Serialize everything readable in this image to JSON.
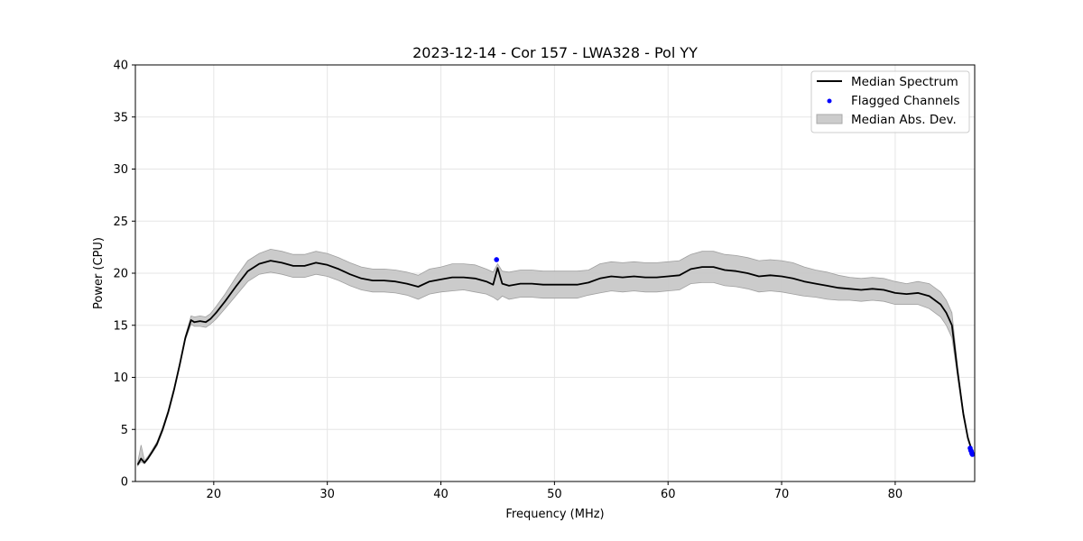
{
  "chart_data": {
    "type": "line",
    "title": "2023-12-14 - Cor 157 - LWA328 - Pol YY",
    "xlabel": "Frequency (MHz)",
    "ylabel": "Power (CPU)",
    "xlim": [
      13.1,
      87.0
    ],
    "ylim": [
      0,
      40
    ],
    "xticks": [
      20,
      30,
      40,
      50,
      60,
      70,
      80
    ],
    "yticks": [
      0,
      5,
      10,
      15,
      20,
      25,
      30,
      35,
      40
    ],
    "grid": true,
    "legend_position": "top-right",
    "legend": [
      {
        "label": "Median Spectrum",
        "kind": "line",
        "color": "#000000"
      },
      {
        "label": "Flagged Channels",
        "kind": "marker",
        "color": "#0000ff"
      },
      {
        "label": "Median Abs. Dev.",
        "kind": "band",
        "color": "#cccccc"
      }
    ],
    "series": [
      {
        "name": "Median Spectrum",
        "color": "#000000",
        "x": [
          13.3,
          13.6,
          13.9,
          14.2,
          14.5,
          15.0,
          15.5,
          16.0,
          16.5,
          17.0,
          17.5,
          18.0,
          18.3,
          18.8,
          19.3,
          19.7,
          20.2,
          21.0,
          22.0,
          23.0,
          24.0,
          25.0,
          26.0,
          27.0,
          28.0,
          29.0,
          30.0,
          31.0,
          32.0,
          33.0,
          34.0,
          35.0,
          36.0,
          37.0,
          38.0,
          39.0,
          40.0,
          41.0,
          42.0,
          43.0,
          44.0,
          44.6,
          45.0,
          45.4,
          46.0,
          47.0,
          48.0,
          49.0,
          50.0,
          51.0,
          52.0,
          53.0,
          54.0,
          55.0,
          56.0,
          57.0,
          58.0,
          59.0,
          60.0,
          61.0,
          62.0,
          63.0,
          64.0,
          65.0,
          66.0,
          67.0,
          68.0,
          69.0,
          70.0,
          71.0,
          72.0,
          73.0,
          74.0,
          75.0,
          76.0,
          77.0,
          78.0,
          79.0,
          80.0,
          81.0,
          82.0,
          83.0,
          84.0,
          84.5,
          85.0,
          85.5,
          86.0,
          86.4,
          86.8
        ],
        "y": [
          1.6,
          2.2,
          1.8,
          2.2,
          2.7,
          3.6,
          5.0,
          6.7,
          8.8,
          11.2,
          13.8,
          15.5,
          15.3,
          15.4,
          15.3,
          15.6,
          16.2,
          17.3,
          18.8,
          20.2,
          20.9,
          21.2,
          21.0,
          20.7,
          20.7,
          21.0,
          20.8,
          20.4,
          19.9,
          19.5,
          19.3,
          19.3,
          19.2,
          19.0,
          18.7,
          19.2,
          19.4,
          19.6,
          19.6,
          19.5,
          19.2,
          18.9,
          20.5,
          19.0,
          18.8,
          19.0,
          19.0,
          18.9,
          18.9,
          18.9,
          18.9,
          19.1,
          19.5,
          19.7,
          19.6,
          19.7,
          19.6,
          19.6,
          19.7,
          19.8,
          20.4,
          20.6,
          20.6,
          20.3,
          20.2,
          20.0,
          19.7,
          19.8,
          19.7,
          19.5,
          19.2,
          19.0,
          18.8,
          18.6,
          18.5,
          18.4,
          18.5,
          18.4,
          18.1,
          18.0,
          18.1,
          17.8,
          17.0,
          16.2,
          15.0,
          10.5,
          6.5,
          4.2,
          2.8
        ]
      }
    ],
    "band": {
      "name": "Median Abs. Dev.",
      "x": [
        13.3,
        13.6,
        13.9,
        14.2,
        14.5,
        15.0,
        15.5,
        16.0,
        16.5,
        17.0,
        17.5,
        18.0,
        18.3,
        18.8,
        19.3,
        19.7,
        20.2,
        21.0,
        22.0,
        23.0,
        24.0,
        25.0,
        26.0,
        27.0,
        28.0,
        29.0,
        30.0,
        31.0,
        32.0,
        33.0,
        34.0,
        35.0,
        36.0,
        37.0,
        38.0,
        39.0,
        40.0,
        41.0,
        42.0,
        43.0,
        44.0,
        44.6,
        45.0,
        45.4,
        46.0,
        47.0,
        48.0,
        49.0,
        50.0,
        51.0,
        52.0,
        53.0,
        54.0,
        55.0,
        56.0,
        57.0,
        58.0,
        59.0,
        60.0,
        61.0,
        62.0,
        63.0,
        64.0,
        65.0,
        66.0,
        67.0,
        68.0,
        69.0,
        70.0,
        71.0,
        72.0,
        73.0,
        74.0,
        75.0,
        76.0,
        77.0,
        78.0,
        79.0,
        80.0,
        81.0,
        82.0,
        83.0,
        84.0,
        84.5,
        85.0,
        85.5,
        86.0,
        86.4,
        86.8
      ],
      "upper": [
        1.8,
        3.5,
        2.0,
        2.4,
        2.9,
        3.8,
        5.2,
        6.9,
        9.0,
        11.4,
        14.0,
        15.9,
        15.8,
        15.9,
        15.8,
        16.1,
        16.8,
        18.0,
        19.7,
        21.2,
        21.9,
        22.3,
        22.1,
        21.8,
        21.8,
        22.1,
        21.9,
        21.5,
        21.0,
        20.6,
        20.4,
        20.4,
        20.3,
        20.1,
        19.8,
        20.4,
        20.6,
        20.9,
        20.9,
        20.8,
        20.4,
        20.1,
        20.9,
        20.2,
        20.1,
        20.3,
        20.3,
        20.2,
        20.2,
        20.2,
        20.2,
        20.3,
        20.9,
        21.1,
        21.0,
        21.1,
        21.0,
        21.0,
        21.1,
        21.2,
        21.8,
        22.1,
        22.1,
        21.8,
        21.7,
        21.5,
        21.2,
        21.3,
        21.2,
        21.0,
        20.6,
        20.3,
        20.1,
        19.8,
        19.6,
        19.5,
        19.6,
        19.5,
        19.2,
        19.0,
        19.2,
        19.0,
        18.2,
        17.4,
        16.2,
        11.0,
        6.8,
        4.4,
        2.9
      ],
      "lower": [
        1.5,
        1.9,
        1.7,
        2.1,
        2.6,
        3.4,
        4.8,
        6.5,
        8.6,
        11.0,
        13.6,
        15.1,
        14.9,
        14.9,
        14.8,
        15.1,
        15.6,
        16.6,
        17.9,
        19.2,
        19.9,
        20.1,
        19.9,
        19.6,
        19.6,
        19.9,
        19.7,
        19.3,
        18.8,
        18.4,
        18.2,
        18.2,
        18.1,
        17.9,
        17.5,
        18.0,
        18.2,
        18.3,
        18.4,
        18.2,
        18.0,
        17.7,
        17.4,
        17.8,
        17.5,
        17.7,
        17.7,
        17.6,
        17.6,
        17.6,
        17.6,
        17.9,
        18.1,
        18.3,
        18.2,
        18.3,
        18.2,
        18.2,
        18.3,
        18.4,
        19.0,
        19.1,
        19.1,
        18.8,
        18.7,
        18.5,
        18.2,
        18.3,
        18.2,
        18.0,
        17.8,
        17.7,
        17.5,
        17.4,
        17.4,
        17.3,
        17.4,
        17.3,
        17.0,
        17.0,
        17.0,
        16.6,
        15.8,
        15.0,
        13.8,
        10.0,
        6.2,
        4.0,
        2.7
      ]
    },
    "flagged": {
      "name": "Flagged Channels",
      "color": "#0000ff",
      "x": [
        44.9,
        86.6,
        86.65,
        86.7,
        86.75,
        86.8
      ],
      "y": [
        21.3,
        3.2,
        3.0,
        2.9,
        2.7,
        2.6
      ]
    }
  }
}
